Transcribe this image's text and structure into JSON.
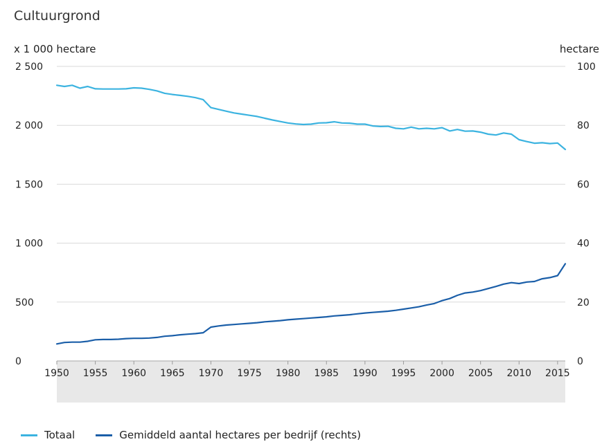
{
  "chart_data": {
    "type": "line",
    "title": "Cultuurgrond",
    "ylabel_left": "x 1 000 hectare",
    "ylabel_right": "hectare",
    "ylim_left": [
      0,
      2500
    ],
    "ylim_right": [
      0,
      100
    ],
    "yticks_left": [
      "0",
      "500",
      "1 000",
      "1 500",
      "2 000",
      "2 500"
    ],
    "yticks_right": [
      "0",
      "20",
      "40",
      "60",
      "80",
      "100"
    ],
    "xlim": [
      1950,
      2016
    ],
    "xticks": [
      "1950",
      "1955",
      "1960",
      "1965",
      "1970",
      "1975",
      "1980",
      "1985",
      "1990",
      "1995",
      "2000",
      "2005",
      "2010",
      "2015"
    ],
    "grid": "horizontal",
    "legend_position": "bottom",
    "x": [
      1950,
      1951,
      1952,
      1953,
      1954,
      1955,
      1956,
      1957,
      1958,
      1959,
      1960,
      1961,
      1962,
      1963,
      1964,
      1965,
      1966,
      1967,
      1968,
      1969,
      1970,
      1971,
      1972,
      1973,
      1974,
      1975,
      1976,
      1977,
      1978,
      1979,
      1980,
      1981,
      1982,
      1983,
      1984,
      1985,
      1986,
      1987,
      1988,
      1989,
      1990,
      1991,
      1992,
      1993,
      1994,
      1995,
      1996,
      1997,
      1998,
      1999,
      2000,
      2001,
      2002,
      2003,
      2004,
      2005,
      2006,
      2007,
      2008,
      2009,
      2010,
      2011,
      2012,
      2013,
      2014,
      2015,
      2016
    ],
    "series": [
      {
        "name": "Totaal",
        "axis": "left",
        "color": "#3bb3e0",
        "values": [
          2340,
          2330,
          2340,
          2315,
          2330,
          2310,
          2308,
          2308,
          2308,
          2310,
          2318,
          2315,
          2305,
          2292,
          2272,
          2262,
          2254,
          2246,
          2235,
          2218,
          2150,
          2135,
          2120,
          2105,
          2095,
          2085,
          2075,
          2060,
          2045,
          2032,
          2020,
          2012,
          2007,
          2010,
          2020,
          2022,
          2030,
          2020,
          2018,
          2010,
          2010,
          1995,
          1990,
          1992,
          1975,
          1970,
          1985,
          1970,
          1975,
          1970,
          1980,
          1952,
          1965,
          1950,
          1952,
          1942,
          1925,
          1918,
          1935,
          1925,
          1878,
          1862,
          1848,
          1852,
          1845,
          1850,
          1795
        ]
      },
      {
        "name": "Gemiddeld aantal hectares per bedrijf (rechts)",
        "axis": "right",
        "color": "#1a5ea8",
        "values": [
          5.8,
          6.3,
          6.4,
          6.4,
          6.7,
          7.2,
          7.3,
          7.3,
          7.4,
          7.6,
          7.7,
          7.7,
          7.8,
          8.0,
          8.4,
          8.6,
          8.9,
          9.1,
          9.3,
          9.6,
          11.5,
          11.9,
          12.2,
          12.4,
          12.6,
          12.8,
          13.0,
          13.3,
          13.5,
          13.7,
          14.0,
          14.2,
          14.4,
          14.6,
          14.8,
          15.0,
          15.3,
          15.5,
          15.7,
          16.0,
          16.3,
          16.5,
          16.7,
          16.9,
          17.2,
          17.6,
          18.0,
          18.4,
          19.0,
          19.5,
          20.5,
          21.2,
          22.3,
          23.1,
          23.4,
          23.9,
          24.6,
          25.3,
          26.1,
          26.6,
          26.3,
          26.8,
          27.0,
          27.9,
          28.3,
          29.0,
          33.0
        ]
      }
    ]
  }
}
